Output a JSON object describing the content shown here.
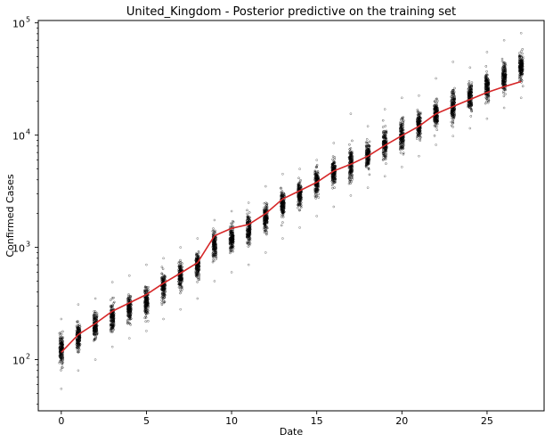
{
  "chart_data": {
    "type": "scatter",
    "title": "United_Kingdom - Posterior predictive on the training set",
    "xlabel": "Date",
    "ylabel": "Confirmed Cases",
    "x_scale": "linear",
    "y_scale": "log",
    "xlim": [
      -1.35,
      28.35
    ],
    "ylim": [
      35,
      105000
    ],
    "x_ticks": [
      0,
      5,
      10,
      15,
      20,
      25
    ],
    "y_ticks": [
      {
        "base": "10",
        "exp": "2",
        "value": 100
      },
      {
        "base": "10",
        "exp": "3",
        "value": 1000
      },
      {
        "base": "10",
        "exp": "4",
        "value": 10000
      },
      {
        "base": "10",
        "exp": "5",
        "value": 100000
      }
    ],
    "grid": false,
    "series": [
      {
        "kind": "line",
        "color": "#d62728",
        "x": [
          0,
          1,
          2,
          3,
          4,
          5,
          6,
          7,
          8,
          9,
          10,
          11,
          12,
          13,
          14,
          15,
          16,
          17,
          18,
          19,
          20,
          21,
          22,
          23,
          24,
          25,
          26,
          27
        ],
        "y": [
          116,
          167,
          210,
          270,
          320,
          380,
          480,
          590,
          730,
          1270,
          1480,
          1600,
          2000,
          2700,
          3200,
          3800,
          4800,
          5500,
          6500,
          8100,
          9900,
          12000,
          15500,
          18000,
          20800,
          24000,
          27000,
          30000
        ]
      },
      {
        "kind": "scatter",
        "color": "#000000",
        "description_of_spread": "posterior predictive samples",
        "x": [
          0,
          1,
          2,
          3,
          4,
          5,
          6,
          7,
          8,
          9,
          10,
          11,
          12,
          13,
          14,
          15,
          16,
          17,
          18,
          19,
          20,
          21,
          22,
          23,
          24,
          25,
          26,
          27
        ],
        "y_median": [
          125,
          160,
          195,
          240,
          285,
          335,
          440,
          560,
          700,
          1050,
          1200,
          1450,
          1850,
          2450,
          3000,
          3750,
          4650,
          5550,
          6650,
          8200,
          9900,
          12400,
          15500,
          18400,
          22000,
          27000,
          33000,
          40500
        ],
        "y_low": [
          55,
          80,
          100,
          130,
          155,
          180,
          230,
          280,
          350,
          500,
          600,
          700,
          900,
          1200,
          1500,
          1900,
          2300,
          2900,
          3400,
          4300,
          5200,
          6500,
          8200,
          9800,
          11500,
          14000,
          17500,
          21500
        ],
        "y_high": [
          230,
          310,
          350,
          490,
          560,
          700,
          800,
          1000,
          1200,
          1750,
          2100,
          2500,
          3500,
          4500,
          5000,
          6000,
          8500,
          15500,
          12000,
          17000,
          21500,
          22500,
          32000,
          45000,
          40000,
          55000,
          70000,
          81000
        ]
      }
    ]
  }
}
